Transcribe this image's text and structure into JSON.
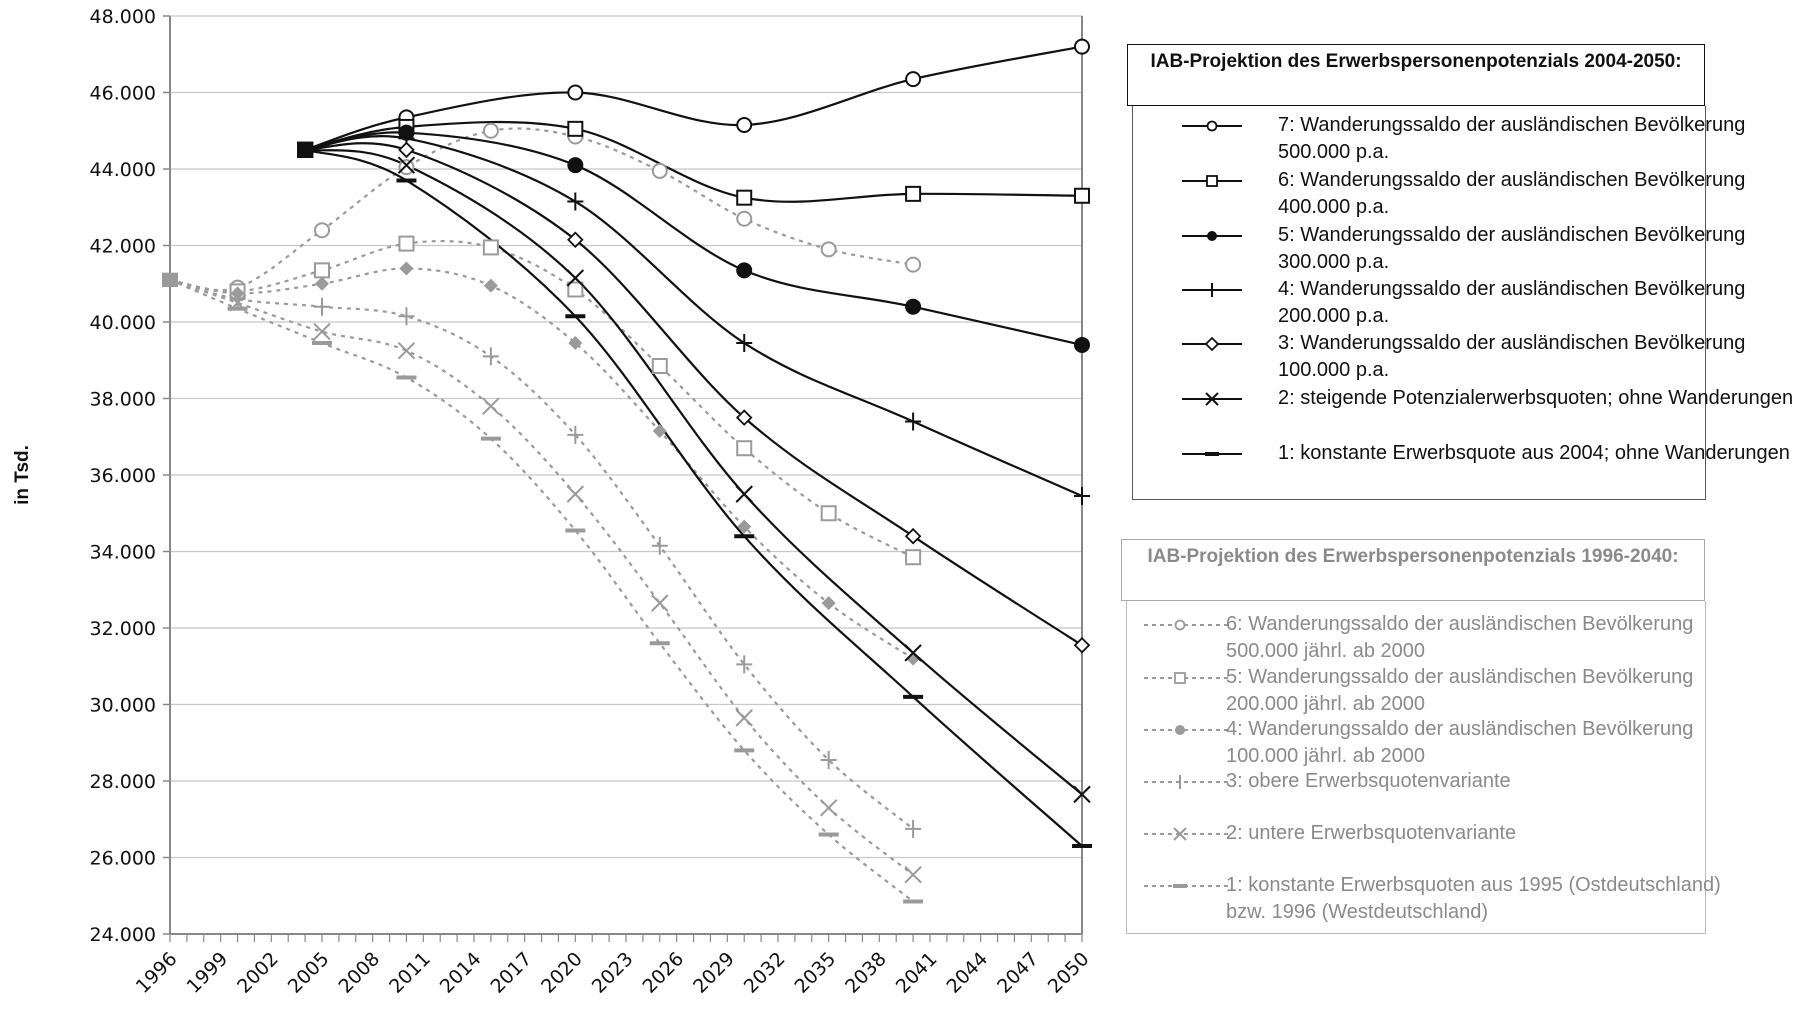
{
  "chart_data": {
    "type": "line",
    "ylabel": "in Tsd.",
    "xlabel": "",
    "ylim": [
      24000,
      48000
    ],
    "xlim": [
      1996,
      2050
    ],
    "y_ticks": [
      "48.000",
      "46.000",
      "44.000",
      "42.000",
      "40.000",
      "38.000",
      "36.000",
      "34.000",
      "32.000",
      "30.000",
      "28.000",
      "26.000",
      "24.000"
    ],
    "x_ticks": [
      "1996",
      "1999",
      "2002",
      "2005",
      "2008",
      "2011",
      "2014",
      "2017",
      "2020",
      "2023",
      "2026",
      "2029",
      "2032",
      "2035",
      "2038",
      "2041",
      "2044",
      "2047",
      "2050"
    ],
    "grid": "horizontal",
    "legend_groups": [
      {
        "title": "IAB-Projektion des Erwerbspersonenpotenzials 2004-2050:",
        "style": "solid-dark",
        "entries": [
          "7: Wanderungssaldo der ausländischen Bevölkerung 500.000 p.a.",
          "6: Wanderungssaldo der ausländischen Bevölkerung 400.000 p.a.",
          "5: Wanderungssaldo der ausländischen Bevölkerung 300.000 p.a.",
          "4: Wanderungssaldo der ausländischen Bevölkerung 200.000 p.a.",
          "3: Wanderungssaldo der ausländischen Bevölkerung 100.000 p.a.",
          "2: steigende Potenzialerwerbsquoten; ohne Wanderungen",
          "1: konstante Erwerbsquote aus 2004; ohne Wanderungen"
        ]
      },
      {
        "title": "IAB-Projektion des Erwerbspersonenpotenzials 1996-2040:",
        "style": "dotted-grey",
        "entries": [
          "6: Wanderungssaldo der ausländischen Bevölkerung 500.000 jährl. ab 2000",
          "5: Wanderungssaldo der ausländischen Bevölkerung 200.000 jährl. ab 2000",
          "4: Wanderungssaldo der ausländischen Bevölkerung 100.000 jährl. ab 2000",
          "3: obere Erwerbsquotenvariante",
          "2: untere Erwerbsquotenvariante",
          "1: konstante Erwerbsquoten aus 1995 (Ostdeutschland) bzw. 1996 (Westdeutschland)"
        ]
      }
    ],
    "series": [
      {
        "name": "7: Wanderungssaldo der ausländischen Bevölkerung 500.000 p.a.",
        "group": "2004-2050",
        "marker": "circle-open",
        "x": [
          2004,
          2010,
          2020,
          2030,
          2040,
          2050
        ],
        "y": [
          44500,
          45350,
          46000,
          45150,
          46350,
          47200
        ]
      },
      {
        "name": "6: Wanderungssaldo der ausländischen Bevölkerung 400.000 p.a.",
        "group": "2004-2050",
        "marker": "square-open",
        "x": [
          2004,
          2010,
          2020,
          2030,
          2040,
          2050
        ],
        "y": [
          44500,
          45100,
          45050,
          43250,
          43350,
          43300
        ]
      },
      {
        "name": "5: Wanderungssaldo der ausländischen Bevölkerung 300.000 p.a.",
        "group": "2004-2050",
        "marker": "circle-filled",
        "x": [
          2004,
          2010,
          2020,
          2030,
          2040,
          2050
        ],
        "y": [
          44500,
          44950,
          44100,
          41350,
          40400,
          39400
        ]
      },
      {
        "name": "4: Wanderungssaldo der ausländischen Bevölkerung 200.000 p.a.",
        "group": "2004-2050",
        "marker": "plus",
        "x": [
          2004,
          2010,
          2020,
          2030,
          2040,
          2050
        ],
        "y": [
          44500,
          44800,
          43150,
          39450,
          37400,
          35450
        ]
      },
      {
        "name": "3: Wanderungssaldo der ausländischen Bevölkerung 100.000 p.a.",
        "group": "2004-2050",
        "marker": "diamond-open",
        "x": [
          2004,
          2010,
          2020,
          2030,
          2040,
          2050
        ],
        "y": [
          44500,
          44500,
          42150,
          37500,
          34400,
          31550
        ]
      },
      {
        "name": "2: steigende Potenzialerwerbsquoten; ohne Wanderungen",
        "group": "2004-2050",
        "marker": "x",
        "x": [
          2004,
          2010,
          2020,
          2030,
          2040,
          2050
        ],
        "y": [
          44500,
          44100,
          41150,
          35500,
          31350,
          27650
        ]
      },
      {
        "name": "1: konstante Erwerbsquote aus 2004; ohne Wanderungen",
        "group": "2004-2050",
        "marker": "dash",
        "x": [
          2004,
          2010,
          2020,
          2030,
          2040,
          2050
        ],
        "y": [
          44500,
          43700,
          40150,
          34400,
          30200,
          26300
        ]
      },
      {
        "name": "6: Wanderungssaldo der ausländischen Bevölkerung 500.000 jährl. ab 2000",
        "group": "1996-2040",
        "marker": "circle-open",
        "x": [
          1996,
          2000,
          2005,
          2010,
          2015,
          2020,
          2025,
          2030,
          2035,
          2040
        ],
        "y": [
          41100,
          40900,
          42400,
          44050,
          45000,
          44850,
          43950,
          42700,
          41900,
          41500
        ]
      },
      {
        "name": "5: Wanderungssaldo der ausländischen Bevölkerung 200.000 jährl. ab 2000",
        "group": "1996-2040",
        "marker": "square-open",
        "x": [
          1996,
          2000,
          2005,
          2010,
          2015,
          2020,
          2025,
          2030,
          2035,
          2040
        ],
        "y": [
          41100,
          40800,
          41350,
          42050,
          41950,
          40850,
          38850,
          36700,
          35000,
          33850
        ]
      },
      {
        "name": "4: Wanderungssaldo der ausländischen Bevölkerung 100.000 jährl. ab 2000",
        "group": "1996-2040",
        "marker": "diamond-filled",
        "x": [
          1996,
          2000,
          2005,
          2010,
          2015,
          2020,
          2025,
          2030,
          2035,
          2040
        ],
        "y": [
          41100,
          40750,
          41000,
          41400,
          40950,
          39450,
          37150,
          34650,
          32650,
          31200
        ]
      },
      {
        "name": "3: obere Erwerbsquotenvariante",
        "group": "1996-2040",
        "marker": "plus",
        "x": [
          1996,
          2000,
          2005,
          2010,
          2015,
          2020,
          2025,
          2030,
          2035,
          2040
        ],
        "y": [
          41100,
          40600,
          40400,
          40150,
          39100,
          37050,
          34150,
          31050,
          28550,
          26750
        ]
      },
      {
        "name": "2: untere Erwerbsquotenvariante",
        "group": "1996-2040",
        "marker": "x",
        "x": [
          1996,
          2000,
          2005,
          2010,
          2015,
          2020,
          2025,
          2030,
          2035,
          2040
        ],
        "y": [
          41100,
          40500,
          39750,
          39250,
          37800,
          35500,
          32650,
          29650,
          27300,
          25550
        ]
      },
      {
        "name": "1: konstante Erwerbsquoten aus 1995 (Ostdeutschland) bzw. 1996 (Westdeutschland)",
        "group": "1996-2040",
        "marker": "dash",
        "x": [
          1996,
          2000,
          2005,
          2010,
          2015,
          2020,
          2025,
          2030,
          2035,
          2040
        ],
        "y": [
          41100,
          40350,
          39450,
          38550,
          36950,
          34550,
          31600,
          28800,
          26600,
          24850
        ]
      }
    ]
  },
  "colors": {
    "dark": "#111111",
    "light": "#9a9a9a",
    "grid": "#c8c8c8",
    "axis": "#888888"
  }
}
